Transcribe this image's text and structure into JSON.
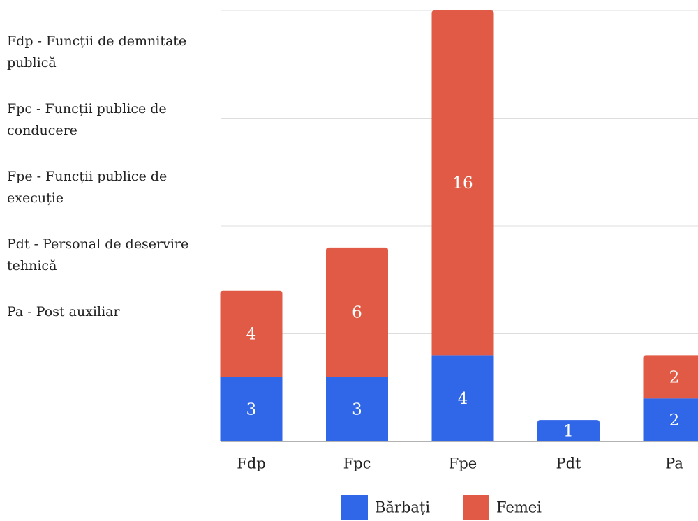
{
  "chart_data": {
    "type": "stacked_bar",
    "categories": [
      "Fdp",
      "Fpc",
      "Fpe",
      "Pdt",
      "Pa"
    ],
    "series": [
      {
        "name": "Bărbați",
        "color": "#3066e8",
        "values": [
          3,
          3,
          4,
          1,
          2
        ]
      },
      {
        "name": "Femei",
        "color": "#e05a45",
        "values": [
          4,
          6,
          16,
          null,
          2
        ]
      }
    ],
    "ylim": [
      0,
      20
    ],
    "yticks": [
      0,
      5,
      10,
      15,
      20
    ],
    "grid": true,
    "legend": "bottom",
    "annotations": [
      "Fdp - Funcții de demnitate publică",
      "Fpc - Funcții publice de conducere",
      "Fpe - Funcții publice de execuție",
      "Pdt - Personal de deservire tehnică",
      "Pa - Post auxiliar"
    ]
  }
}
